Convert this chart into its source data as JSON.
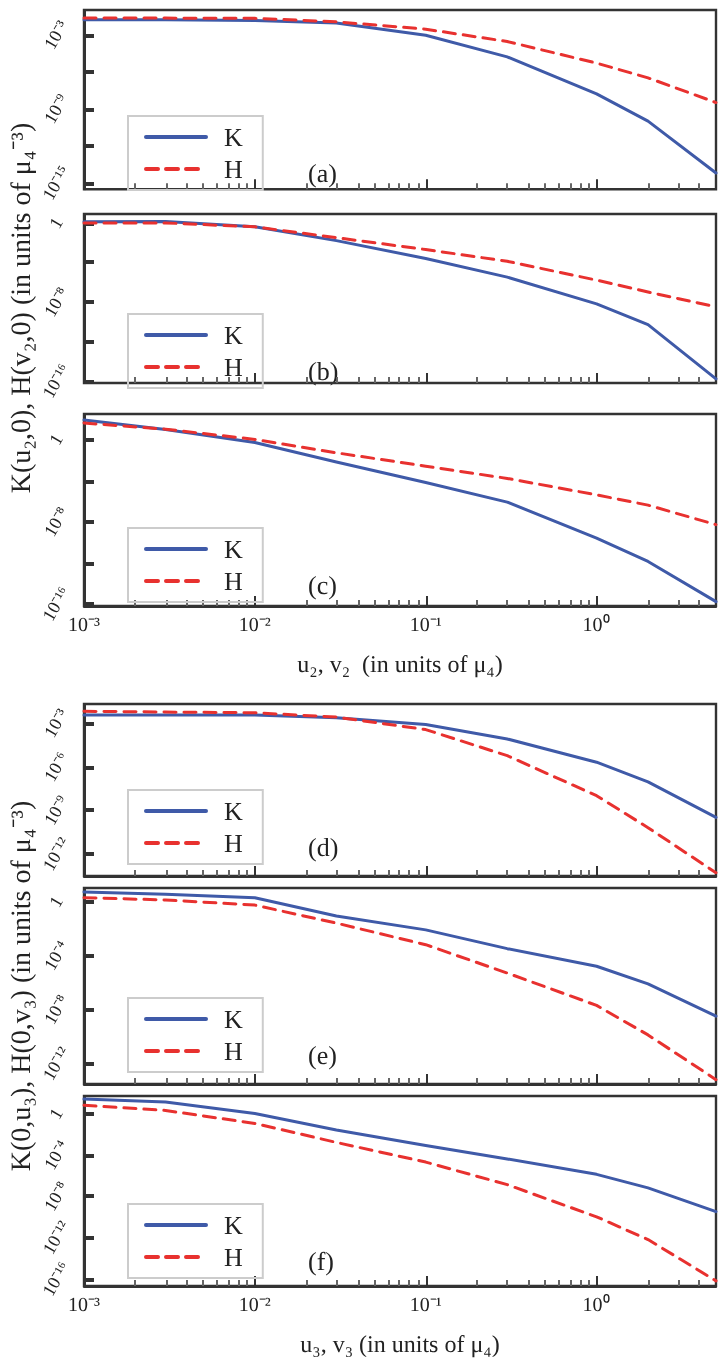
{
  "chart_data": [
    {
      "type": "line",
      "x": [
        0.001,
        0.003,
        0.01,
        0.03,
        0.1,
        0.3,
        1,
        2,
        5
      ],
      "log": "xy",
      "xlim": [
        0.001,
        5
      ],
      "ylim": [
        3e-16,
        0.1
      ],
      "xticks": [
        {
          "value": 0.001,
          "label": null
        },
        {
          "value": 0.01,
          "label": null
        },
        {
          "value": 0.1,
          "label": null
        },
        {
          "value": 1,
          "label": null
        }
      ],
      "yticks": [
        {
          "value": 0.001,
          "label": "10⁻³"
        },
        {
          "value": 1e-06,
          "label": null
        },
        {
          "value": 1e-09,
          "label": "10⁻⁹"
        },
        {
          "value": 1e-12,
          "label": null
        },
        {
          "value": 1e-15,
          "label": "10⁻¹⁵"
        }
      ],
      "tick_labels": "y",
      "legend": "bottom left",
      "marker": "none",
      "annotations": [
        "(a)"
      ],
      "series": [
        {
          "name": "K",
          "color": "#3f5aa8",
          "line_style": "solid",
          "values": [
            0.016,
            0.016,
            0.014,
            0.0087,
            0.00089,
            1.6e-05,
            1.6e-08,
            1e-10,
            6.3e-15
          ]
        },
        {
          "name": "H",
          "color": "#e8312f",
          "line_style": "dashed",
          "values": [
            0.022,
            0.022,
            0.021,
            0.011,
            0.0028,
            0.00028,
            5e-06,
            3.2e-07,
            3.2e-09
          ]
        }
      ]
    },
    {
      "type": "line",
      "x": [
        0.001,
        0.003,
        0.01,
        0.03,
        0.1,
        0.3,
        1,
        2,
        5
      ],
      "log": "xy",
      "xlim": [
        0.001,
        5
      ],
      "ylim": [
        6e-17,
        8
      ],
      "xticks": [
        {
          "value": 0.001,
          "label": null
        },
        {
          "value": 0.01,
          "label": null
        },
        {
          "value": 0.1,
          "label": null
        },
        {
          "value": 1,
          "label": null
        }
      ],
      "yticks": [
        {
          "value": 1,
          "label": "1"
        },
        {
          "value": 0.0001,
          "label": null
        },
        {
          "value": 1e-08,
          "label": "10⁻⁸"
        },
        {
          "value": 1e-12,
          "label": null
        },
        {
          "value": 1e-16,
          "label": "10⁻¹⁶"
        }
      ],
      "tick_labels": "y",
      "legend": "bottom left",
      "marker": "none",
      "ylabel": "K(u₂,0), H(v₂,0) (in units of μ₄⁻³)",
      "annotations": [
        "(b)"
      ],
      "series": [
        {
          "name": "K",
          "color": "#3f5aa8",
          "line_style": "solid",
          "values": [
            1.3,
            1.4,
            0.4,
            0.016,
            0.00025,
            3.2e-06,
            6.3e-09,
            5e-11,
            1.6e-16
          ]
        },
        {
          "name": "H",
          "color": "#e8312f",
          "line_style": "dashed",
          "values": [
            1,
            1,
            0.4,
            0.032,
            0.002,
            0.00013,
            1.6e-06,
            1e-07,
            3.2e-09
          ]
        }
      ]
    },
    {
      "type": "line",
      "x": [
        0.001,
        0.003,
        0.01,
        0.03,
        0.1,
        0.3,
        1,
        2,
        5
      ],
      "log": "xy",
      "xlim": [
        0.001,
        5
      ],
      "ylim": [
        6e-17,
        300
      ],
      "xticks": [
        {
          "value": 0.001,
          "label": "10⁻³"
        },
        {
          "value": 0.01,
          "label": "10⁻²"
        },
        {
          "value": 0.1,
          "label": "10⁻¹"
        },
        {
          "value": 1,
          "label": "10⁰"
        }
      ],
      "yticks": [
        {
          "value": 1,
          "label": "1"
        },
        {
          "value": 0.0001,
          "label": null
        },
        {
          "value": 1e-08,
          "label": "10⁻⁸"
        },
        {
          "value": 1e-12,
          "label": null
        },
        {
          "value": 1e-16,
          "label": "10⁻¹⁶"
        }
      ],
      "legend": "bottom left",
      "marker": "none",
      "xlabel": "u₂, v₂  (in units of μ₄)",
      "annotations": [
        "(c)"
      ],
      "series": [
        {
          "name": "K",
          "color": "#3f5aa8",
          "line_style": "solid",
          "values": [
            79,
            9.1,
            0.5,
            0.0063,
            6.3e-05,
            7.9e-07,
            2.5e-10,
            1.3e-12,
            1.6e-16
          ]
        },
        {
          "name": "H",
          "color": "#e8312f",
          "line_style": "dashed",
          "values": [
            40,
            10,
            1,
            0.05,
            0.0025,
            0.00016,
            4e-06,
            4e-07,
            5e-09
          ]
        }
      ]
    },
    {
      "type": "line",
      "x": [
        0.001,
        0.003,
        0.01,
        0.03,
        0.1,
        0.3,
        1,
        2,
        5
      ],
      "log": "xy",
      "xlim": [
        0.001,
        5
      ],
      "ylim": [
        3e-14,
        0.02
      ],
      "xticks": [
        {
          "value": 0.001,
          "label": null
        },
        {
          "value": 0.01,
          "label": null
        },
        {
          "value": 0.1,
          "label": null
        },
        {
          "value": 1,
          "label": null
        }
      ],
      "yticks": [
        {
          "value": 0.001,
          "label": "10⁻³"
        },
        {
          "value": 1e-06,
          "label": "10⁻⁶"
        },
        {
          "value": 1e-09,
          "label": "10⁻⁹"
        },
        {
          "value": 1e-12,
          "label": "10⁻¹²"
        }
      ],
      "tick_labels": "y",
      "legend": "bottom left",
      "marker": "none",
      "annotations": [
        "(d)"
      ],
      "series": [
        {
          "name": "K",
          "color": "#3f5aa8",
          "line_style": "solid",
          "values": [
            0.0035,
            0.0035,
            0.0035,
            0.0023,
            0.00079,
            7.9e-05,
            2e-06,
            8.9e-08,
            3.2e-10
          ]
        },
        {
          "name": "H",
          "color": "#e8312f",
          "line_style": "dashed",
          "values": [
            0.0063,
            0.0056,
            0.005,
            0.0025,
            0.00035,
            5.6e-06,
            1e-08,
            6.3e-11,
            5e-14
          ]
        }
      ]
    },
    {
      "type": "line",
      "x": [
        0.001,
        0.003,
        0.01,
        0.03,
        0.1,
        0.3,
        1,
        2,
        5
      ],
      "log": "xy",
      "xlim": [
        0.001,
        5
      ],
      "ylim": [
        3e-14,
        10
      ],
      "xticks": [
        {
          "value": 0.001,
          "label": null
        },
        {
          "value": 0.01,
          "label": null
        },
        {
          "value": 0.1,
          "label": null
        },
        {
          "value": 1,
          "label": null
        }
      ],
      "yticks": [
        {
          "value": 1,
          "label": "1"
        },
        {
          "value": 0.0001,
          "label": "10⁻⁴"
        },
        {
          "value": 1e-08,
          "label": "10⁻⁸"
        },
        {
          "value": 1e-12,
          "label": "10⁻¹²"
        }
      ],
      "tick_labels": "y",
      "legend": "bottom left",
      "marker": "none",
      "ylabel": "K(0,u₃), H(0,v₃) (in units of μ₄⁻³)",
      "annotations": [
        "(e)"
      ],
      "series": [
        {
          "name": "K",
          "color": "#3f5aa8",
          "line_style": "solid",
          "values": [
            5,
            3.5,
            1.9,
            0.085,
            0.0079,
            0.00032,
            1.6e-05,
            7.9e-07,
            3.2e-09
          ]
        },
        {
          "name": "H",
          "color": "#e8312f",
          "line_style": "dashed",
          "values": [
            1.9,
            1.3,
            0.54,
            0.025,
            0.00063,
            5e-06,
            2e-08,
            1.3e-10,
            6.3e-14
          ]
        }
      ]
    },
    {
      "type": "line",
      "x": [
        0.001,
        0.003,
        0.01,
        0.03,
        0.1,
        0.3,
        1,
        2,
        5
      ],
      "log": "xy",
      "xlim": [
        0.001,
        5
      ],
      "ylim": [
        2e-17,
        50
      ],
      "xticks": [
        {
          "value": 0.001,
          "label": "10⁻³"
        },
        {
          "value": 0.01,
          "label": "10⁻²"
        },
        {
          "value": 0.1,
          "label": "10⁻¹"
        },
        {
          "value": 1,
          "label": "10⁰"
        }
      ],
      "yticks": [
        {
          "value": 1,
          "label": "1"
        },
        {
          "value": 0.0001,
          "label": "10⁻⁴"
        },
        {
          "value": 1e-08,
          "label": "10⁻⁸"
        },
        {
          "value": 1e-12,
          "label": "10⁻¹²"
        },
        {
          "value": 1e-16,
          "label": "10⁻¹⁶"
        }
      ],
      "legend": "bottom left",
      "marker": "none",
      "xlabel": "u₃, v₃ (in units of μ₄)",
      "annotations": [
        "(f)"
      ],
      "series": [
        {
          "name": "K",
          "color": "#3f5aa8",
          "line_style": "solid",
          "values": [
            25,
            13,
            1,
            0.025,
            0.00079,
            4e-05,
            1.3e-06,
            6.3e-08,
            3.2e-10
          ]
        },
        {
          "name": "H",
          "color": "#e8312f",
          "line_style": "dashed",
          "values": [
            6.3,
            2,
            0.11,
            0.0016,
            2e-05,
            1.3e-07,
            1e-10,
            6.3e-13,
            6.3e-17
          ]
        }
      ]
    }
  ]
}
